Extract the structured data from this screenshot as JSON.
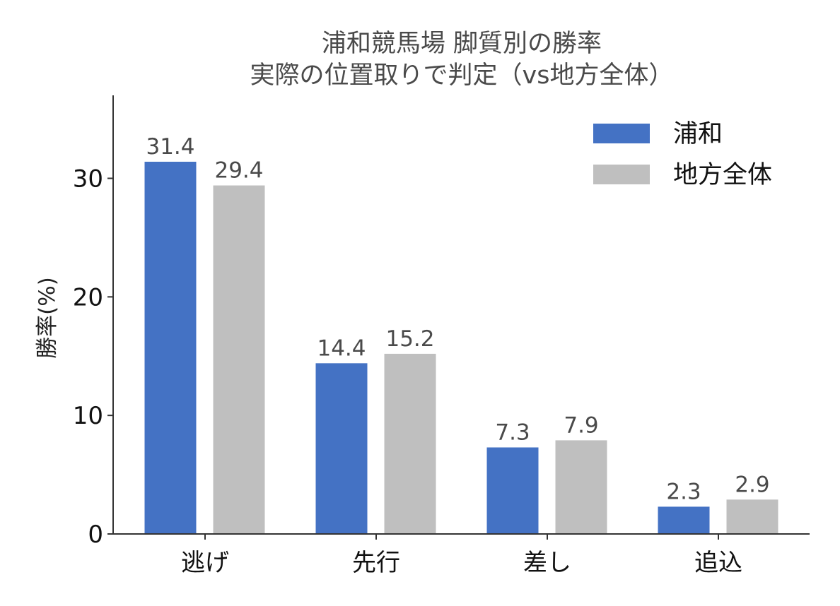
{
  "chart_data": {
    "type": "bar",
    "title": "浦和競馬場 脚質別の勝率",
    "subtitle": "実際の位置取りで判定（vs地方全体）",
    "xlabel": "",
    "ylabel": "勝率(%)",
    "categories": [
      "逃げ",
      "先行",
      "差し",
      "追込"
    ],
    "series": [
      {
        "name": "浦和",
        "color": "#4472C4",
        "values": [
          31.4,
          14.4,
          7.3,
          2.3
        ],
        "value_labels": [
          "31.4",
          "14.4",
          "7.3",
          "2.3"
        ]
      },
      {
        "name": "地方全体",
        "color": "#BFBFBF",
        "values": [
          29.4,
          15.2,
          7.9,
          2.9
        ],
        "value_labels": [
          "29.4",
          "15.2",
          "7.9",
          "2.9"
        ]
      }
    ],
    "ylim": [
      0,
      37
    ],
    "yticks": [
      0,
      10,
      20,
      30
    ],
    "ytick_labels": [
      "0",
      "10",
      "20",
      "30"
    ],
    "grid": false,
    "legend": {
      "placement": "top-right",
      "entries": [
        "浦和",
        "地方全体"
      ]
    }
  }
}
